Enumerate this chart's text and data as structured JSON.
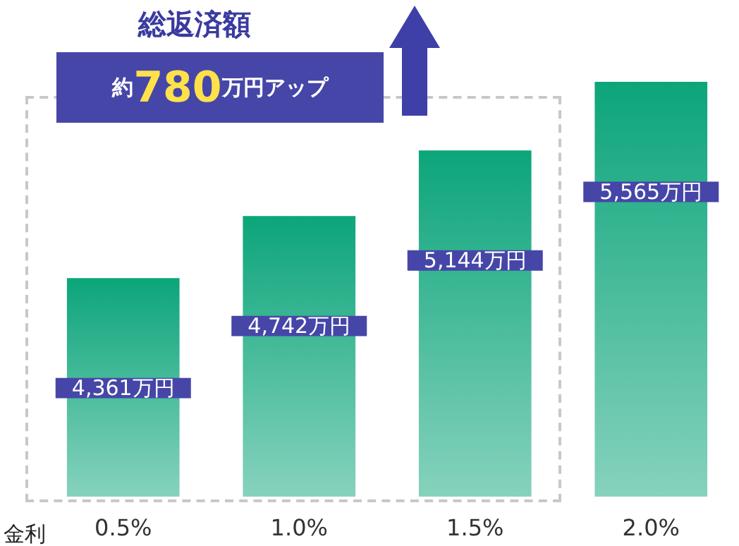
{
  "chart_data": {
    "type": "bar",
    "title": "総返済額",
    "xlabel": "金利",
    "annotations": [
      "約780万円アップ"
    ],
    "categories": [
      "0.5%",
      "1.0%",
      "1.5%",
      "2.0%"
    ],
    "values": [
      4361,
      4742,
      5144,
      5565
    ],
    "value_labels": [
      "4,361万円",
      "4,742万円",
      "5,144万円",
      "5,565万円"
    ],
    "color": "#0ca57a",
    "ylim": [
      3020,
      5565
    ],
    "grid": false
  }
}
